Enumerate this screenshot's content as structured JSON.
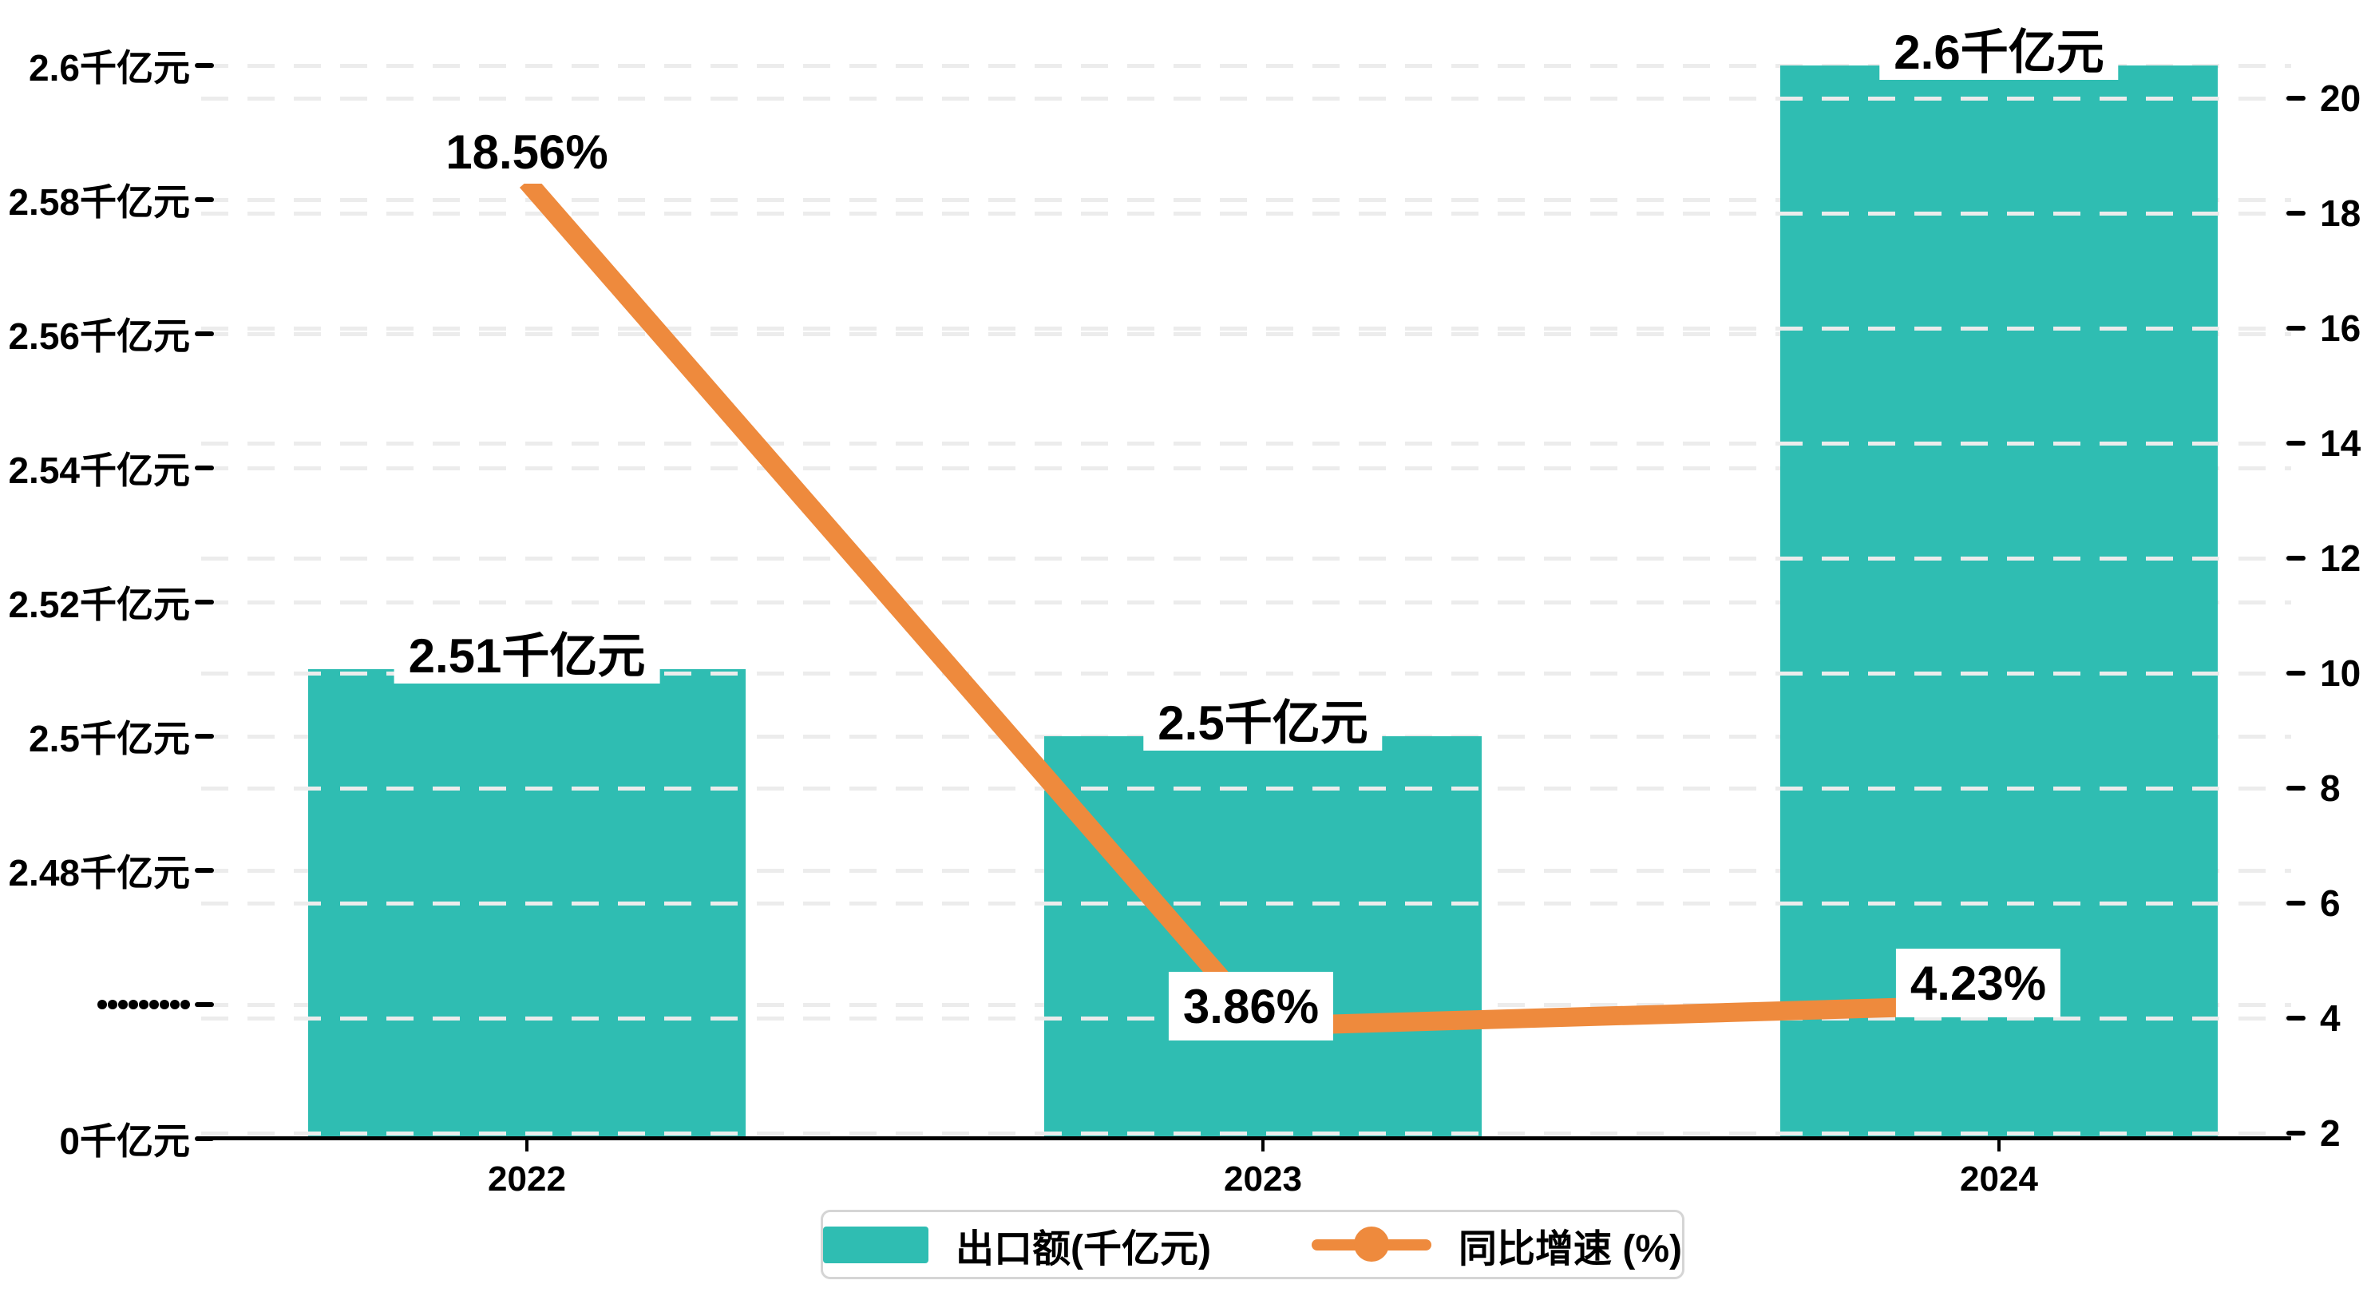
{
  "chart_data": {
    "type": "combo",
    "categories": [
      "2022",
      "2023",
      "2024"
    ],
    "series": [
      {
        "name": "出口额(千亿元)",
        "chart_type": "bar",
        "axis": "left",
        "unit": "千亿元",
        "values": [
          2.51,
          2.5,
          2.6
        ],
        "data_labels": [
          "2.51千亿元",
          "2.5千亿元",
          "2.6千亿元"
        ],
        "color": "#2fbdb2"
      },
      {
        "name": "同比增速 (%)",
        "chart_type": "line",
        "axis": "right",
        "unit": "%",
        "values": [
          18.56,
          3.86,
          4.23
        ],
        "data_labels": [
          "18.56%",
          "3.86%",
          "4.23%"
        ],
        "color": "#ee8a3d"
      }
    ],
    "left_axis": {
      "unit": "千亿元",
      "tick_labels": [
        "2.6千亿元",
        "2.58千亿元",
        "2.56千亿元",
        "2.54千亿元",
        "2.52千亿元",
        "2.5千亿元",
        "2.48千亿元",
        "·········",
        "0千亿元"
      ],
      "axis_break": true,
      "tick_step": 0.02,
      "top_value": 2.6,
      "bottom_value": 0
    },
    "right_axis": {
      "tick_labels": [
        "20",
        "18",
        "16",
        "14",
        "12",
        "10",
        "8",
        "6",
        "4",
        "2"
      ],
      "min": 2,
      "max": 20,
      "step": 2
    },
    "x_axis": {
      "tick_labels": [
        "2022",
        "2023",
        "2024"
      ]
    },
    "legend": {
      "items": [
        {
          "label": "出口额(千亿元)",
          "marker": "bar-swatch"
        },
        {
          "label": "同比增速 (%)",
          "marker": "line-dot"
        }
      ]
    },
    "grid": "dashed horizontal, both axes",
    "colors": {
      "bar": "#2fbdb2",
      "line": "#ee8a3d",
      "grid": "#ececec",
      "axis": "#000000",
      "text": "#000000",
      "label_bg": "#ffffff",
      "legend_border": "#d5d5d5",
      "background": "#ffffff"
    }
  }
}
